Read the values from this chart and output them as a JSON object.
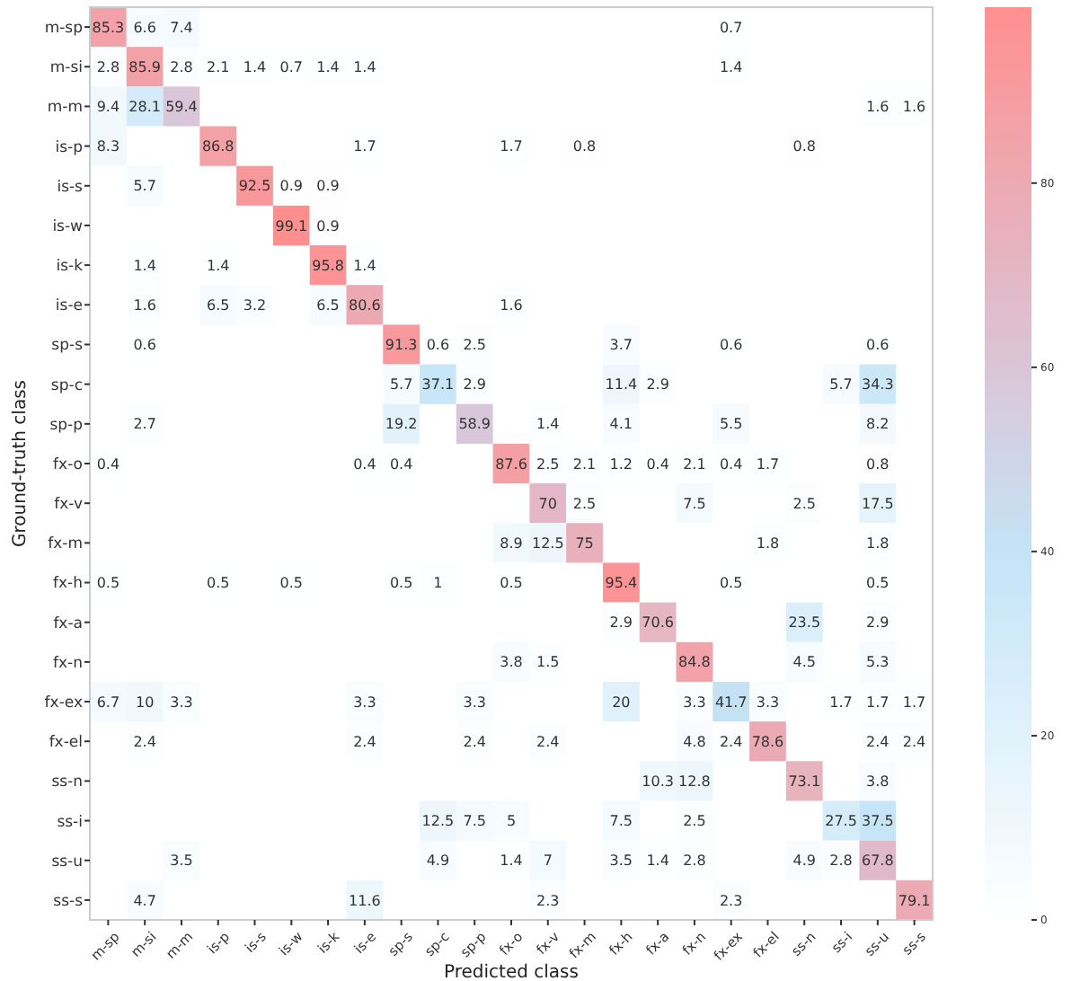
{
  "chart_data": {
    "type": "heatmap",
    "xlabel": "Predicted class",
    "ylabel": "Ground-truth class",
    "categories": [
      "m-sp",
      "m-si",
      "m-m",
      "is-p",
      "is-s",
      "is-w",
      "is-k",
      "is-e",
      "sp-s",
      "sp-c",
      "sp-p",
      "fx-o",
      "fx-v",
      "fx-m",
      "fx-h",
      "fx-a",
      "fx-n",
      "fx-ex",
      "fx-el",
      "ss-n",
      "ss-i",
      "ss-u",
      "ss-s"
    ],
    "y_categories": [
      "m-sp",
      "m-si",
      "m-m",
      "is-p",
      "is-s",
      "is-w",
      "is-k",
      "is-e",
      "sp-s",
      "sp-c",
      "sp-p",
      "fx-o",
      "fx-v",
      "fx-m",
      "fx-h",
      "fx-a",
      "fx-n",
      "fx-ex",
      "fx-el",
      "ss-n",
      "ss-i",
      "ss-u",
      "ss-s"
    ],
    "cells": [
      [
        85.3,
        6.6,
        7.4,
        null,
        null,
        null,
        null,
        null,
        null,
        null,
        null,
        null,
        null,
        null,
        null,
        null,
        null,
        0.7,
        null,
        null,
        null,
        null,
        null
      ],
      [
        2.8,
        85.9,
        2.8,
        2.1,
        1.4,
        0.7,
        1.4,
        1.4,
        null,
        null,
        null,
        null,
        null,
        null,
        null,
        null,
        null,
        1.4,
        null,
        null,
        null,
        null,
        null
      ],
      [
        9.4,
        28.1,
        59.4,
        null,
        null,
        null,
        null,
        null,
        null,
        null,
        null,
        null,
        null,
        null,
        null,
        null,
        null,
        null,
        null,
        null,
        null,
        1.6,
        1.6
      ],
      [
        8.3,
        null,
        null,
        86.8,
        null,
        null,
        null,
        1.7,
        null,
        null,
        null,
        1.7,
        null,
        0.8,
        null,
        null,
        null,
        null,
        null,
        0.8,
        null,
        null,
        null
      ],
      [
        null,
        5.7,
        null,
        null,
        92.5,
        0.9,
        0.9,
        null,
        null,
        null,
        null,
        null,
        null,
        null,
        null,
        null,
        null,
        null,
        null,
        null,
        null,
        null,
        null
      ],
      [
        null,
        null,
        null,
        null,
        null,
        99.1,
        0.9,
        null,
        null,
        null,
        null,
        null,
        null,
        null,
        null,
        null,
        null,
        null,
        null,
        null,
        null,
        null,
        null
      ],
      [
        null,
        1.4,
        null,
        1.4,
        null,
        null,
        95.8,
        1.4,
        null,
        null,
        null,
        null,
        null,
        null,
        null,
        null,
        null,
        null,
        null,
        null,
        null,
        null,
        null
      ],
      [
        null,
        1.6,
        null,
        6.5,
        3.2,
        null,
        6.5,
        80.6,
        null,
        null,
        null,
        1.6,
        null,
        null,
        null,
        null,
        null,
        null,
        null,
        null,
        null,
        null,
        null
      ],
      [
        null,
        0.6,
        null,
        null,
        null,
        null,
        null,
        null,
        91.3,
        0.6,
        2.5,
        null,
        null,
        null,
        3.7,
        null,
        null,
        0.6,
        null,
        null,
        null,
        0.6,
        null
      ],
      [
        null,
        null,
        null,
        null,
        null,
        null,
        null,
        null,
        5.7,
        37.1,
        2.9,
        null,
        null,
        null,
        11.4,
        2.9,
        null,
        null,
        null,
        null,
        5.7,
        34.3,
        null
      ],
      [
        null,
        2.7,
        null,
        null,
        null,
        null,
        null,
        null,
        19.2,
        null,
        58.9,
        null,
        1.4,
        null,
        4.1,
        null,
        null,
        5.5,
        null,
        null,
        null,
        8.2,
        null
      ],
      [
        0.4,
        null,
        null,
        null,
        null,
        null,
        null,
        0.4,
        0.4,
        null,
        null,
        87.6,
        2.5,
        2.1,
        1.2,
        0.4,
        2.1,
        0.4,
        1.7,
        null,
        null,
        0.8,
        null
      ],
      [
        null,
        null,
        null,
        null,
        null,
        null,
        null,
        null,
        null,
        null,
        null,
        null,
        70,
        2.5,
        null,
        null,
        7.5,
        null,
        null,
        2.5,
        null,
        17.5,
        null
      ],
      [
        null,
        null,
        null,
        null,
        null,
        null,
        null,
        null,
        null,
        null,
        null,
        8.9,
        12.5,
        75,
        null,
        null,
        null,
        null,
        1.8,
        null,
        null,
        1.8,
        null
      ],
      [
        0.5,
        null,
        null,
        0.5,
        null,
        0.5,
        null,
        null,
        0.5,
        1,
        null,
        0.5,
        null,
        null,
        95.4,
        null,
        null,
        0.5,
        null,
        null,
        null,
        0.5,
        null
      ],
      [
        null,
        null,
        null,
        null,
        null,
        null,
        null,
        null,
        null,
        null,
        null,
        null,
        null,
        null,
        2.9,
        70.6,
        null,
        null,
        null,
        23.5,
        null,
        2.9,
        null
      ],
      [
        null,
        null,
        null,
        null,
        null,
        null,
        null,
        null,
        null,
        null,
        null,
        3.8,
        1.5,
        null,
        null,
        null,
        84.8,
        null,
        null,
        4.5,
        null,
        5.3,
        null
      ],
      [
        6.7,
        10,
        3.3,
        null,
        null,
        null,
        null,
        3.3,
        null,
        null,
        3.3,
        null,
        null,
        null,
        20,
        null,
        3.3,
        41.7,
        3.3,
        null,
        1.7,
        1.7,
        1.7
      ],
      [
        null,
        2.4,
        null,
        null,
        null,
        null,
        null,
        2.4,
        null,
        null,
        2.4,
        null,
        2.4,
        null,
        null,
        null,
        4.8,
        2.4,
        78.6,
        null,
        null,
        2.4,
        2.4
      ],
      [
        null,
        null,
        null,
        null,
        null,
        null,
        null,
        null,
        null,
        null,
        null,
        null,
        null,
        null,
        null,
        10.3,
        12.8,
        null,
        null,
        73.1,
        null,
        3.8,
        null
      ],
      [
        null,
        null,
        null,
        null,
        null,
        null,
        null,
        null,
        null,
        12.5,
        7.5,
        5,
        null,
        null,
        7.5,
        null,
        2.5,
        null,
        null,
        null,
        27.5,
        37.5,
        null
      ],
      [
        null,
        null,
        3.5,
        null,
        null,
        null,
        null,
        null,
        null,
        4.9,
        null,
        1.4,
        7,
        null,
        3.5,
        1.4,
        2.8,
        null,
        null,
        4.9,
        2.8,
        67.8,
        null
      ],
      [
        null,
        4.7,
        null,
        null,
        null,
        null,
        null,
        11.6,
        null,
        null,
        null,
        null,
        2.3,
        null,
        null,
        null,
        null,
        2.3,
        null,
        null,
        null,
        null,
        79.1
      ]
    ],
    "clim": [
      0,
      99.1
    ],
    "cticks": [
      0,
      20,
      40,
      60,
      80
    ],
    "data_labels": true,
    "grid": false
  }
}
